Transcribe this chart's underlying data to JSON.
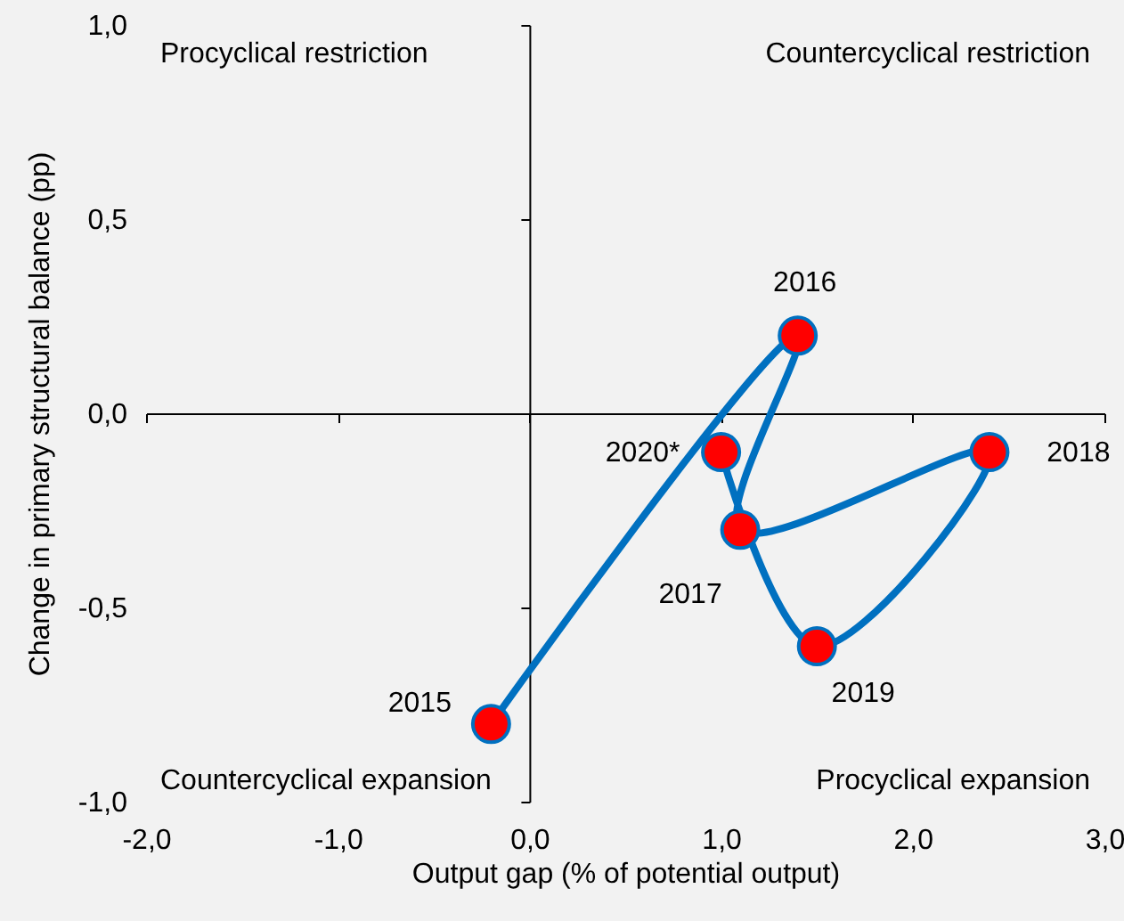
{
  "chart_data": {
    "type": "line",
    "xlabel": "Output gap (% of potential output)",
    "ylabel": "Change in primary structural balance (pp)",
    "x": [
      -0.2,
      1.4,
      1.1,
      2.4,
      1.5,
      1.0
    ],
    "series": [
      {
        "color": "#0070c0",
        "colors": [
          "#ff0000",
          "#ff0000",
          "#ff0000",
          "#ff0000",
          "#ff0000",
          "#ff0000"
        ],
        "values": [
          -0.8,
          0.2,
          -0.3,
          -0.1,
          -0.6,
          -0.1
        ]
      }
    ],
    "marker": "circle",
    "line_style": "solid",
    "xlim": [
      -2,
      3
    ],
    "xticks": [
      {
        "value": -2,
        "label": "-2,0"
      },
      {
        "value": -1,
        "label": "-1,0"
      },
      {
        "value": 0,
        "label": "0,0"
      },
      {
        "value": 1,
        "label": "1,0"
      },
      {
        "value": 2,
        "label": "2,0"
      },
      {
        "value": 3,
        "label": "3,0"
      }
    ],
    "ylim": [
      -1,
      1
    ],
    "yticks": [
      {
        "value": -1,
        "label": "-1,0"
      },
      {
        "value": -0.5,
        "label": "-0,5"
      },
      {
        "value": 0,
        "label": "0,0"
      },
      {
        "value": 0.5,
        "label": "0,5"
      },
      {
        "value": 1,
        "label": "1,0"
      }
    ],
    "annotations": [
      "Procyclical restriction",
      "Countercyclical restriction",
      "Countercyclical expansion",
      "Procyclical expansion",
      {
        "text": "2015",
        "x": -0.2,
        "y": -0.8
      },
      {
        "text": "2016",
        "x": 1.4,
        "y": 0.2
      },
      {
        "text": "2017",
        "x": 1.1,
        "y": -0.3
      },
      {
        "text": "2018",
        "x": 2.4,
        "y": -0.1
      },
      {
        "text": "2019",
        "x": 1.5,
        "y": -0.6
      },
      {
        "text": "2020*",
        "x": 1.0,
        "y": -0.1
      }
    ]
  }
}
